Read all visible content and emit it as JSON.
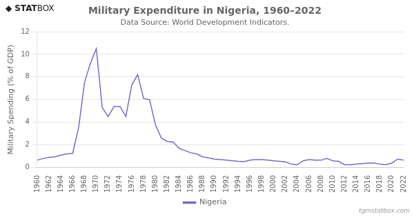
{
  "chart_data": {
    "type": "line",
    "title": "Military Expenditure in Nigeria, 1960–2022",
    "subtitle": "Data Source: World Development Indicators.",
    "y_label": "Military Spending (% of GDP)",
    "annotations": [
      "◆",
      "STAT",
      "BOX",
      "tgmstatbox.com"
    ],
    "x": [
      1960,
      1961,
      1962,
      1963,
      1964,
      1965,
      1966,
      1967,
      1968,
      1969,
      1970,
      1971,
      1972,
      1973,
      1974,
      1975,
      1976,
      1977,
      1978,
      1979,
      1980,
      1981,
      1982,
      1983,
      1984,
      1985,
      1986,
      1987,
      1988,
      1989,
      1990,
      1991,
      1992,
      1993,
      1994,
      1995,
      1996,
      1997,
      1998,
      1999,
      2000,
      2001,
      2002,
      2003,
      2004,
      2005,
      2006,
      2007,
      2008,
      2009,
      2010,
      2011,
      2012,
      2013,
      2014,
      2015,
      2016,
      2017,
      2018,
      2019,
      2020,
      2021,
      2022
    ],
    "series": [
      {
        "name": "Nigeria",
        "color": "#7b68c8",
        "values": [
          0.65,
          0.8,
          0.9,
          0.95,
          1.1,
          1.2,
          1.25,
          3.5,
          7.5,
          9.2,
          10.5,
          5.3,
          4.5,
          5.4,
          5.4,
          4.5,
          7.3,
          8.2,
          6.1,
          6.0,
          3.8,
          2.6,
          2.3,
          2.25,
          1.7,
          1.5,
          1.3,
          1.2,
          0.95,
          0.85,
          0.75,
          0.7,
          0.65,
          0.6,
          0.55,
          0.52,
          0.65,
          0.7,
          0.7,
          0.65,
          0.6,
          0.55,
          0.5,
          0.3,
          0.25,
          0.6,
          0.7,
          0.65,
          0.65,
          0.8,
          0.6,
          0.55,
          0.25,
          0.25,
          0.3,
          0.35,
          0.4,
          0.4,
          0.3,
          0.25,
          0.4,
          0.75,
          0.65
        ]
      }
    ],
    "xlim": [
      1960,
      2022
    ],
    "xticks": [
      1960,
      1962,
      1964,
      1966,
      1968,
      1970,
      1972,
      1974,
      1976,
      1978,
      1980,
      1982,
      1984,
      1986,
      1988,
      1990,
      1992,
      1994,
      1996,
      1998,
      2000,
      2002,
      2004,
      2006,
      2008,
      2010,
      2012,
      2014,
      2016,
      2018,
      2020,
      2022
    ],
    "ylim": [
      0,
      12
    ],
    "yticks": [
      0,
      2,
      4,
      6,
      8,
      10,
      12
    ],
    "grid": true,
    "legend": "bottom"
  }
}
